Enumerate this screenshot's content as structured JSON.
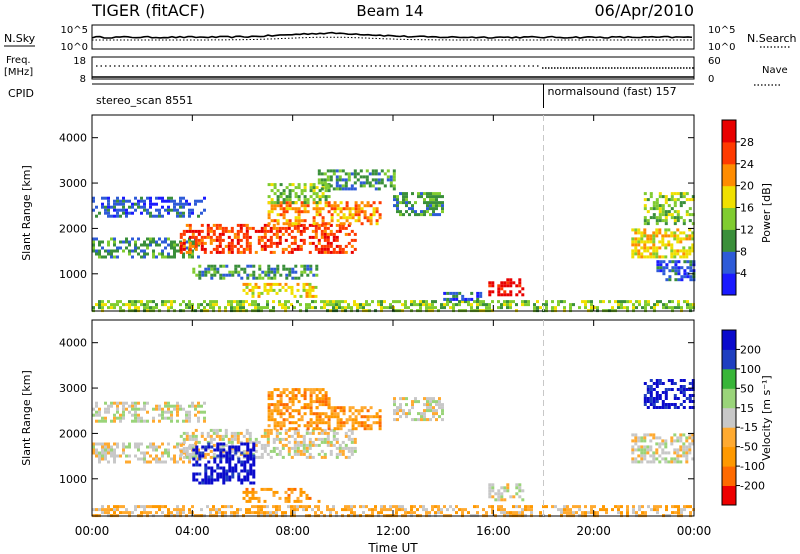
{
  "header": {
    "radar": "TIGER (fitACF)",
    "beam": "Beam 14",
    "date": "06/Apr/2010"
  },
  "top_panels": {
    "nsky_label": "N.Sky",
    "nsky_ticks": [
      "10^5",
      "10^0"
    ],
    "nsearch_label": "N.Search",
    "nsearch_ticks": [
      "10^5",
      "10^0"
    ],
    "freq_label_1": "Freq.",
    "freq_label_2": "[MHz]",
    "freq_ticks": [
      "18",
      "8"
    ],
    "nave_label": "Nave",
    "nave_ticks": [
      "60",
      "0"
    ],
    "cpid_label": "CPID",
    "cpid_segments": [
      {
        "name": "stereo_scan 8551",
        "start_h": 0,
        "end_h": 18.0
      },
      {
        "name": "normalsound (fast) 157",
        "start_h": 18.0,
        "end_h": 24.0
      }
    ]
  },
  "x_axis": {
    "title": "Time UT",
    "ticks": [
      "00:00",
      "04:00",
      "08:00",
      "12:00",
      "16:00",
      "20:00",
      "00:00"
    ],
    "range_h": [
      0,
      24
    ],
    "marker_h": 18.0
  },
  "chart_data": [
    {
      "type": "heatmap",
      "name": "power",
      "ylabel": "Slant Range [km]",
      "ylim": [
        180,
        4500
      ],
      "yticks": [
        "1000",
        "2000",
        "3000",
        "4000"
      ],
      "yticks_values": [
        1000,
        2000,
        3000,
        4000
      ],
      "colorbar_label": "Power [dB]",
      "colorbar_ticks": [
        "4",
        "8",
        "12",
        "16",
        "20",
        "24",
        "28"
      ],
      "colorbar_colors": [
        "#1a1aff",
        "#2e5bd8",
        "#3a8f3a",
        "#80cc30",
        "#f0e000",
        "#ff8c00",
        "#ff3a00",
        "#e80000"
      ],
      "regions": [
        {
          "t0": 0.0,
          "t1": 24.0,
          "r0": 200,
          "r1": 420,
          "level": 3
        },
        {
          "t0": 0.0,
          "t1": 4.2,
          "r0": 1400,
          "r1": 1800,
          "level": 2
        },
        {
          "t0": 0.0,
          "t1": 4.5,
          "r0": 2300,
          "r1": 2700,
          "level": 1
        },
        {
          "t0": 3.5,
          "t1": 10.5,
          "r0": 1500,
          "r1": 2100,
          "level": 6
        },
        {
          "t0": 7.0,
          "t1": 11.5,
          "r0": 2100,
          "r1": 2600,
          "level": 5
        },
        {
          "t0": 6.0,
          "t1": 9.0,
          "r0": 500,
          "r1": 800,
          "level": 4
        },
        {
          "t0": 7.0,
          "t1": 9.5,
          "r0": 2600,
          "r1": 3000,
          "level": 3
        },
        {
          "t0": 9.0,
          "t1": 12.0,
          "r0": 2900,
          "r1": 3300,
          "level": 2
        },
        {
          "t0": 4.0,
          "t1": 9.0,
          "r0": 900,
          "r1": 1200,
          "level": 2
        },
        {
          "t0": 12.0,
          "t1": 14.0,
          "r0": 2300,
          "r1": 2800,
          "level": 2
        },
        {
          "t0": 15.8,
          "t1": 17.2,
          "r0": 550,
          "r1": 900,
          "level": 7
        },
        {
          "t0": 14.0,
          "t1": 15.5,
          "r0": 420,
          "r1": 600,
          "level": 1
        },
        {
          "t0": 21.5,
          "t1": 24.0,
          "r0": 1400,
          "r1": 2000,
          "level": 4
        },
        {
          "t0": 22.0,
          "t1": 24.0,
          "r0": 2100,
          "r1": 2800,
          "level": 3
        },
        {
          "t0": 22.5,
          "t1": 24.0,
          "r0": 900,
          "r1": 1300,
          "level": 1
        }
      ]
    },
    {
      "type": "heatmap",
      "name": "velocity",
      "ylabel": "Slant Range [km]",
      "ylim": [
        180,
        4500
      ],
      "yticks": [
        "1000",
        "2000",
        "3000",
        "4000"
      ],
      "yticks_values": [
        1000,
        2000,
        3000,
        4000
      ],
      "colorbar_label": "Velocity [m s⁻¹]",
      "colorbar_ticks": [
        "-200",
        "-100",
        "-50",
        "-15",
        "15",
        "50",
        "100",
        "200"
      ],
      "colorbar_colors": [
        "#ee0000",
        "#ff6a00",
        "#ff9900",
        "#ffaa30",
        "#c8c8c8",
        "#9ad47a",
        "#38b538",
        "#1f3fc0",
        "#0a0acc"
      ],
      "regions": [
        {
          "t0": 0.0,
          "t1": 24.0,
          "r0": 200,
          "r1": 420,
          "level": 3
        },
        {
          "t0": 0.0,
          "t1": 4.2,
          "r0": 1400,
          "r1": 1800,
          "level": 4
        },
        {
          "t0": 0.0,
          "t1": 4.5,
          "r0": 2300,
          "r1": 2700,
          "level": 4
        },
        {
          "t0": 3.5,
          "t1": 10.5,
          "r0": 1500,
          "r1": 2100,
          "level": 4
        },
        {
          "t0": 7.0,
          "t1": 11.5,
          "r0": 2100,
          "r1": 2600,
          "level": 2
        },
        {
          "t0": 6.0,
          "t1": 9.0,
          "r0": 500,
          "r1": 800,
          "level": 2
        },
        {
          "t0": 7.0,
          "t1": 9.5,
          "r0": 2600,
          "r1": 3000,
          "level": 2
        },
        {
          "t0": 4.0,
          "t1": 6.5,
          "r0": 900,
          "r1": 1800,
          "level": 8
        },
        {
          "t0": 12.0,
          "t1": 14.0,
          "r0": 2300,
          "r1": 2800,
          "level": 4
        },
        {
          "t0": 15.8,
          "t1": 17.2,
          "r0": 550,
          "r1": 900,
          "level": 4
        },
        {
          "t0": 21.5,
          "t1": 24.0,
          "r0": 1400,
          "r1": 2000,
          "level": 4
        },
        {
          "t0": 22.0,
          "t1": 24.0,
          "r0": 2600,
          "r1": 3200,
          "level": 8
        }
      ]
    }
  ]
}
